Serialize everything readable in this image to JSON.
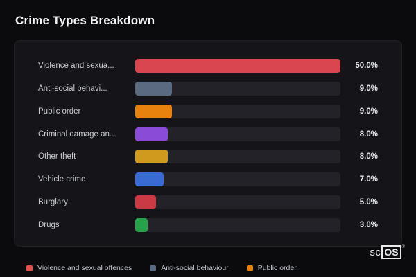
{
  "page": {
    "title": "Crime Types Breakdown"
  },
  "brand": {
    "prefix": "sc",
    "boxed": "OS",
    "registered": "®"
  },
  "chart_data": {
    "type": "bar",
    "orientation": "horizontal",
    "title": "Crime Types Breakdown",
    "value_unit": "%",
    "scale_max": 50.0,
    "grid": false,
    "legend_position": "bottom",
    "categories": [
      "Violence and sexua...",
      "Anti-social behavi...",
      "Public order",
      "Criminal damage an...",
      "Other theft",
      "Vehicle crime",
      "Burglary",
      "Drugs"
    ],
    "values": [
      50.0,
      9.0,
      9.0,
      8.0,
      8.0,
      7.0,
      5.0,
      3.0
    ],
    "rows": [
      {
        "label": "Violence and sexua...",
        "value": 50.0,
        "display": "50.0%",
        "color": "#d9454f"
      },
      {
        "label": "Anti-social behavi...",
        "value": 9.0,
        "display": "9.0%",
        "color": "#5a6a80"
      },
      {
        "label": "Public order",
        "value": 9.0,
        "display": "9.0%",
        "color": "#e8820f"
      },
      {
        "label": "Criminal damage an...",
        "value": 8.0,
        "display": "8.0%",
        "color": "#8a4bd6"
      },
      {
        "label": "Other theft",
        "value": 8.0,
        "display": "8.0%",
        "color": "#cf9a1d"
      },
      {
        "label": "Vehicle crime",
        "value": 7.0,
        "display": "7.0%",
        "color": "#3a6bd2"
      },
      {
        "label": "Burglary",
        "value": 5.0,
        "display": "5.0%",
        "color": "#c93a44"
      },
      {
        "label": "Drugs",
        "value": 3.0,
        "display": "3.0%",
        "color": "#27a24a"
      }
    ],
    "legend": [
      {
        "label": "Violence and sexual offences",
        "color": "#e2504c"
      },
      {
        "label": "Anti-social behaviour",
        "color": "#5a6a80"
      },
      {
        "label": "Public order",
        "color": "#e8820f"
      }
    ]
  }
}
